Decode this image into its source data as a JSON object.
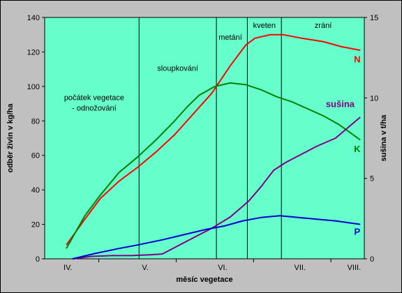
{
  "chart_data": {
    "type": "line",
    "xlabel": "měsíc vegetace",
    "ylabel": "odběr živin v kg/ha",
    "y2label": "sušina v t/ha",
    "xlim": [
      0,
      10.33
    ],
    "ylim": [
      0,
      140
    ],
    "y2lim": [
      0,
      15
    ],
    "x_tick_labels": [
      {
        "x": 0.75,
        "label": "IV."
      },
      {
        "x": 3.25,
        "label": "V."
      },
      {
        "x": 5.75,
        "label": "VI."
      },
      {
        "x": 8.25,
        "label": "VII."
      },
      {
        "x": 10.0,
        "label": "VIII."
      }
    ],
    "x_minor_ticks": [
      1.75,
      4.25,
      6.75,
      9.25
    ],
    "y_ticks": [
      0,
      20,
      40,
      60,
      80,
      100,
      120,
      140
    ],
    "y2_ticks": [
      0,
      5,
      10,
      15
    ],
    "plot_background": "#66ffcc",
    "phase_lines": [
      3.05,
      5.55,
      6.55,
      7.65
    ],
    "phase_labels": [
      {
        "text": "počátek vegetace",
        "x": 1.6,
        "y": 92
      },
      {
        "text": "- odnožování",
        "x": 1.6,
        "y": 86
      },
      {
        "text": "sloupkování",
        "x": 4.3,
        "y": 109
      },
      {
        "text": "metání",
        "x": 6.0,
        "y": 127
      },
      {
        "text": "kveten",
        "x": 7.1,
        "y": 134
      },
      {
        "text": "zrání",
        "x": 9.0,
        "y": 134
      }
    ],
    "series": [
      {
        "name": "N",
        "axis": "left",
        "color": "#ff0000",
        "label_x": 10.1,
        "label_y": 114,
        "points": [
          [
            0.7,
            8
          ],
          [
            1.3,
            23
          ],
          [
            1.8,
            35
          ],
          [
            2.4,
            45
          ],
          [
            3.0,
            53
          ],
          [
            3.6,
            62
          ],
          [
            4.2,
            72
          ],
          [
            4.8,
            84
          ],
          [
            5.4,
            96
          ],
          [
            6.0,
            112
          ],
          [
            6.5,
            124
          ],
          [
            6.8,
            128
          ],
          [
            7.3,
            130
          ],
          [
            7.7,
            130
          ],
          [
            8.3,
            128
          ],
          [
            9.0,
            126
          ],
          [
            9.6,
            123
          ],
          [
            10.2,
            121
          ]
        ]
      },
      {
        "name": "K",
        "axis": "left",
        "color": "#008000",
        "label_x": 10.1,
        "label_y": 62,
        "points": [
          [
            0.7,
            6
          ],
          [
            1.3,
            25
          ],
          [
            1.8,
            37
          ],
          [
            2.4,
            50
          ],
          [
            3.0,
            59
          ],
          [
            3.6,
            69
          ],
          [
            4.2,
            80
          ],
          [
            4.6,
            88
          ],
          [
            5.0,
            95
          ],
          [
            5.5,
            100
          ],
          [
            6.0,
            102
          ],
          [
            6.5,
            101
          ],
          [
            7.0,
            98
          ],
          [
            7.5,
            94
          ],
          [
            8.0,
            91
          ],
          [
            8.5,
            87
          ],
          [
            9.0,
            83
          ],
          [
            9.5,
            78
          ],
          [
            10.2,
            69
          ]
        ]
      },
      {
        "name": "sušina",
        "axis": "right",
        "color": "#800080",
        "label_x": 9.55,
        "label_y": 88,
        "points": [
          [
            0.9,
            0
          ],
          [
            1.5,
            0.15
          ],
          [
            2.2,
            0.2
          ],
          [
            2.8,
            0.2
          ],
          [
            3.4,
            0.25
          ],
          [
            3.8,
            0.3
          ],
          [
            4.2,
            0.7
          ],
          [
            4.8,
            1.3
          ],
          [
            5.4,
            1.9
          ],
          [
            6.0,
            2.6
          ],
          [
            6.6,
            3.6
          ],
          [
            7.0,
            4.5
          ],
          [
            7.4,
            5.5
          ],
          [
            7.8,
            6.0
          ],
          [
            8.2,
            6.4
          ],
          [
            8.8,
            7.0
          ],
          [
            9.4,
            7.5
          ],
          [
            10.2,
            8.8
          ]
        ]
      },
      {
        "name": "P",
        "axis": "left",
        "color": "#0000cc",
        "label_x": 10.1,
        "label_y": 14,
        "points": [
          [
            0.9,
            0
          ],
          [
            1.6,
            3
          ],
          [
            2.4,
            6
          ],
          [
            3.0,
            8
          ],
          [
            3.8,
            11
          ],
          [
            4.5,
            14
          ],
          [
            5.2,
            17
          ],
          [
            5.8,
            19
          ],
          [
            6.4,
            22
          ],
          [
            7.0,
            24
          ],
          [
            7.6,
            25
          ],
          [
            8.2,
            24
          ],
          [
            8.8,
            23
          ],
          [
            9.4,
            22
          ],
          [
            10.2,
            20
          ]
        ]
      }
    ]
  }
}
